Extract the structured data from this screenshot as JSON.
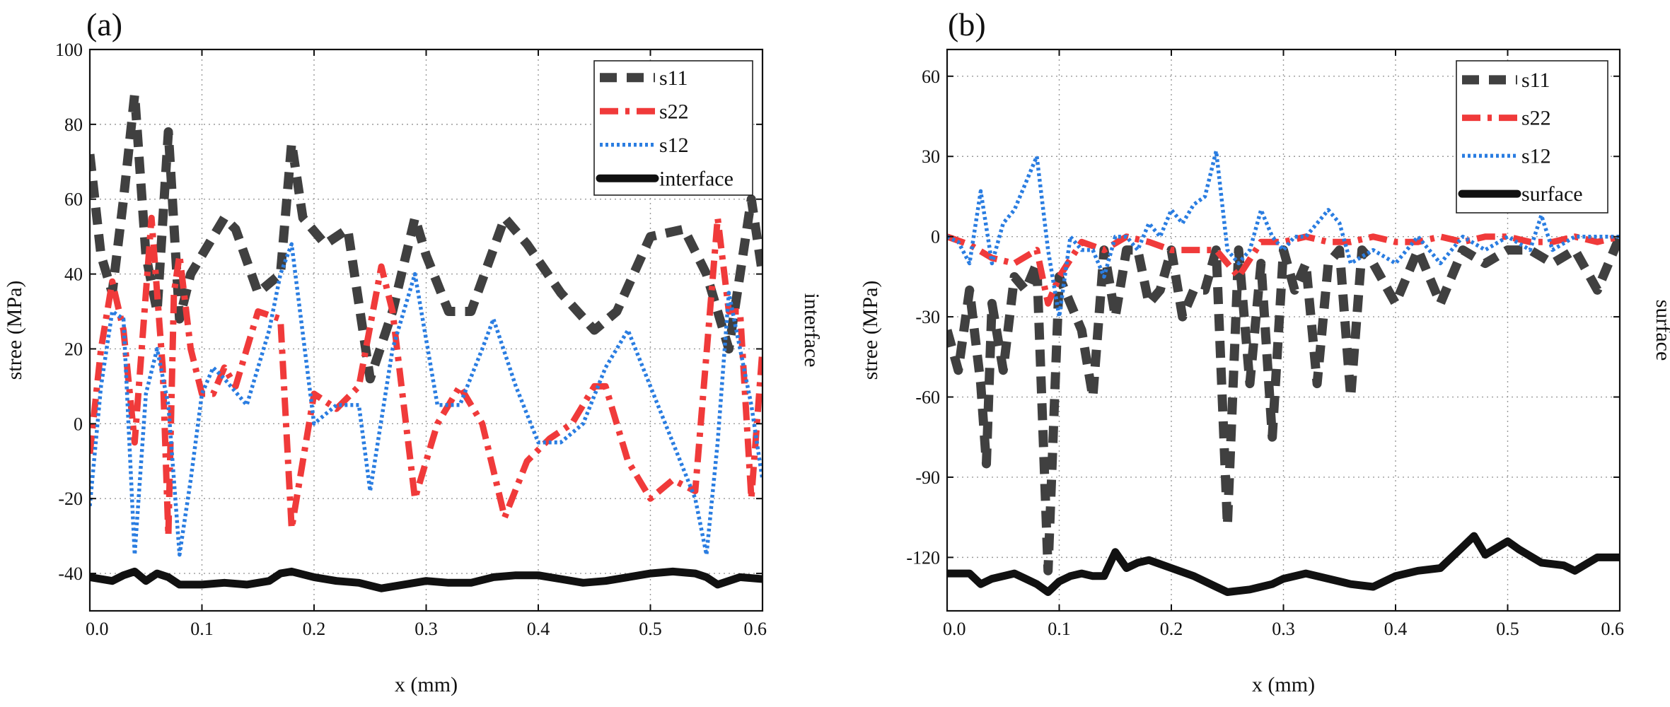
{
  "chart_data": [
    {
      "type": "line",
      "panel_label": "(a)",
      "xlabel": "x (mm)",
      "ylabel": "stree (MPa)",
      "right_label": "interface",
      "xlim": [
        0,
        0.6
      ],
      "ylim": [
        -50,
        100
      ],
      "x_ticks": [
        0.0,
        0.1,
        0.2,
        0.3,
        0.4,
        0.5,
        0.6
      ],
      "x_tick_labels": [
        "0.0",
        "0.1",
        "0.2",
        "0.3",
        "0.4",
        "0.5",
        "0.6"
      ],
      "y_ticks": [
        -40,
        -20,
        0,
        20,
        40,
        60,
        80,
        100
      ],
      "y_tick_labels": [
        "-40",
        "-20",
        "0",
        "20",
        "40",
        "60",
        "80",
        "100"
      ],
      "grid": true,
      "legend_position": "top-right",
      "series": [
        {
          "name": "s11",
          "color": "#404040",
          "style": "dash",
          "x": [
            0,
            0.01,
            0.02,
            0.03,
            0.04,
            0.05,
            0.06,
            0.07,
            0.08,
            0.09,
            0.1,
            0.12,
            0.13,
            0.15,
            0.17,
            0.18,
            0.19,
            0.21,
            0.23,
            0.25,
            0.27,
            0.29,
            0.3,
            0.32,
            0.34,
            0.37,
            0.39,
            0.42,
            0.45,
            0.47,
            0.5,
            0.53,
            0.55,
            0.57,
            0.59,
            0.6
          ],
          "y": [
            72,
            45,
            35,
            60,
            88,
            45,
            30,
            78,
            28,
            40,
            45,
            55,
            52,
            35,
            40,
            75,
            55,
            48,
            52,
            12,
            30,
            55,
            45,
            30,
            30,
            55,
            48,
            35,
            25,
            30,
            50,
            52,
            40,
            20,
            60,
            40
          ]
        },
        {
          "name": "s22",
          "color": "#f03a3a",
          "style": "dashdot",
          "x": [
            0,
            0.01,
            0.02,
            0.03,
            0.04,
            0.05,
            0.055,
            0.06,
            0.065,
            0.07,
            0.075,
            0.08,
            0.09,
            0.1,
            0.11,
            0.12,
            0.13,
            0.15,
            0.17,
            0.18,
            0.2,
            0.22,
            0.24,
            0.26,
            0.27,
            0.29,
            0.31,
            0.33,
            0.35,
            0.37,
            0.39,
            0.41,
            0.43,
            0.45,
            0.46,
            0.48,
            0.5,
            0.52,
            0.54,
            0.56,
            0.57,
            0.58,
            0.59,
            0.6
          ],
          "y": [
            -8,
            20,
            38,
            25,
            -5,
            35,
            55,
            35,
            15,
            -30,
            35,
            45,
            20,
            8,
            8,
            15,
            10,
            30,
            28,
            -28,
            8,
            4,
            10,
            42,
            30,
            -20,
            0,
            10,
            0,
            -25,
            -10,
            -4,
            0,
            10,
            10,
            -10,
            -20,
            -15,
            -18,
            55,
            30,
            30,
            -20,
            20
          ]
        },
        {
          "name": "s12",
          "color": "#2a7de1",
          "style": "dot",
          "x": [
            0,
            0.01,
            0.02,
            0.03,
            0.04,
            0.05,
            0.06,
            0.07,
            0.08,
            0.09,
            0.1,
            0.11,
            0.12,
            0.14,
            0.16,
            0.17,
            0.18,
            0.2,
            0.22,
            0.24,
            0.25,
            0.27,
            0.29,
            0.31,
            0.33,
            0.35,
            0.36,
            0.38,
            0.4,
            0.42,
            0.44,
            0.46,
            0.48,
            0.5,
            0.52,
            0.54,
            0.55,
            0.56,
            0.57,
            0.58,
            0.59,
            0.6
          ],
          "y": [
            -22,
            10,
            30,
            28,
            -35,
            8,
            20,
            5,
            -35,
            -15,
            8,
            15,
            12,
            5,
            25,
            40,
            48,
            0,
            5,
            5,
            -18,
            20,
            40,
            5,
            5,
            20,
            28,
            10,
            -5,
            -5,
            0,
            15,
            25,
            10,
            -5,
            -20,
            -35,
            -5,
            35,
            20,
            5,
            -15
          ]
        },
        {
          "name": "interface",
          "color": "#111111",
          "style": "solid",
          "x": [
            0,
            0.02,
            0.03,
            0.04,
            0.05,
            0.06,
            0.07,
            0.08,
            0.09,
            0.1,
            0.12,
            0.14,
            0.16,
            0.17,
            0.18,
            0.2,
            0.22,
            0.24,
            0.26,
            0.28,
            0.3,
            0.32,
            0.34,
            0.36,
            0.38,
            0.4,
            0.42,
            0.44,
            0.46,
            0.48,
            0.5,
            0.52,
            0.54,
            0.55,
            0.56,
            0.58,
            0.6
          ],
          "y": [
            -41,
            -42,
            -40.5,
            -39.5,
            -42,
            -40,
            -41,
            -43,
            -43,
            -43,
            -42.5,
            -43,
            -42,
            -40,
            -39.5,
            -41,
            -42,
            -42.5,
            -44,
            -43,
            -42,
            -42.5,
            -42.5,
            -41,
            -40.5,
            -40.5,
            -41.5,
            -42.5,
            -42,
            -41,
            -40,
            -39.5,
            -40,
            -41,
            -43,
            -41,
            -41.5
          ]
        }
      ]
    },
    {
      "type": "line",
      "panel_label": "(b)",
      "xlabel": "x (mm)",
      "ylabel": "stree (MPa)",
      "right_label": "surface",
      "xlim": [
        0,
        0.6
      ],
      "ylim": [
        -140,
        70
      ],
      "x_ticks": [
        0.0,
        0.1,
        0.2,
        0.3,
        0.4,
        0.5,
        0.6
      ],
      "x_tick_labels": [
        "0.0",
        "0.1",
        "0.2",
        "0.3",
        "0.4",
        "0.5",
        "0.6"
      ],
      "y_ticks": [
        -120,
        -90,
        -60,
        -30,
        0,
        30,
        60
      ],
      "y_tick_labels": [
        "-120",
        "-90",
        "-60",
        "-30",
        "0",
        "30",
        "60"
      ],
      "grid": true,
      "legend_position": "top-right",
      "series": [
        {
          "name": "s11",
          "color": "#404040",
          "style": "dash",
          "x": [
            0,
            0.01,
            0.02,
            0.03,
            0.035,
            0.04,
            0.05,
            0.06,
            0.07,
            0.08,
            0.09,
            0.1,
            0.11,
            0.12,
            0.13,
            0.14,
            0.15,
            0.16,
            0.17,
            0.18,
            0.19,
            0.2,
            0.21,
            0.22,
            0.23,
            0.24,
            0.25,
            0.26,
            0.27,
            0.28,
            0.29,
            0.3,
            0.31,
            0.32,
            0.33,
            0.34,
            0.35,
            0.36,
            0.37,
            0.38,
            0.4,
            0.42,
            0.44,
            0.46,
            0.48,
            0.5,
            0.52,
            0.54,
            0.56,
            0.58,
            0.6
          ],
          "y": [
            -35,
            -50,
            -20,
            -55,
            -85,
            -25,
            -50,
            -15,
            -20,
            -10,
            -125,
            -15,
            -25,
            -35,
            -60,
            -5,
            -30,
            -5,
            -5,
            -25,
            -20,
            -5,
            -30,
            -20,
            -20,
            -5,
            -108,
            -5,
            -55,
            -10,
            -75,
            -5,
            -20,
            -10,
            -55,
            -10,
            -5,
            -60,
            -5,
            -10,
            -25,
            -5,
            -25,
            -5,
            -10,
            -5,
            -5,
            -10,
            -5,
            -20,
            0
          ]
        },
        {
          "name": "s22",
          "color": "#f03a3a",
          "style": "dashdot",
          "x": [
            0,
            0.02,
            0.04,
            0.06,
            0.08,
            0.09,
            0.1,
            0.12,
            0.14,
            0.16,
            0.18,
            0.2,
            0.22,
            0.24,
            0.26,
            0.28,
            0.3,
            0.32,
            0.34,
            0.36,
            0.38,
            0.4,
            0.42,
            0.44,
            0.46,
            0.48,
            0.5,
            0.52,
            0.54,
            0.56,
            0.58,
            0.6
          ],
          "y": [
            0,
            -3,
            -8,
            -10,
            -5,
            -25,
            -15,
            -2,
            -5,
            0,
            -2,
            -5,
            -5,
            -5,
            -15,
            -2,
            -2,
            0,
            -2,
            -2,
            0,
            -2,
            -2,
            0,
            -2,
            0,
            0,
            -2,
            -2,
            0,
            -2,
            0
          ]
        },
        {
          "name": "s12",
          "color": "#2a7de1",
          "style": "dot",
          "x": [
            0,
            0.01,
            0.02,
            0.03,
            0.04,
            0.05,
            0.06,
            0.07,
            0.08,
            0.09,
            0.1,
            0.11,
            0.12,
            0.13,
            0.14,
            0.15,
            0.16,
            0.17,
            0.18,
            0.19,
            0.2,
            0.21,
            0.22,
            0.23,
            0.24,
            0.25,
            0.26,
            0.27,
            0.28,
            0.29,
            0.3,
            0.31,
            0.32,
            0.33,
            0.34,
            0.35,
            0.36,
            0.38,
            0.4,
            0.42,
            0.44,
            0.46,
            0.48,
            0.5,
            0.52,
            0.53,
            0.54,
            0.56,
            0.58,
            0.6
          ],
          "y": [
            0,
            -2,
            -10,
            17,
            -10,
            5,
            10,
            20,
            30,
            -5,
            -30,
            0,
            -5,
            -5,
            -15,
            0,
            0,
            -5,
            5,
            0,
            10,
            5,
            12,
            15,
            32,
            -5,
            -10,
            -5,
            10,
            0,
            -5,
            0,
            0,
            5,
            10,
            5,
            -10,
            -5,
            -10,
            0,
            -10,
            0,
            -5,
            0,
            -5,
            8,
            -5,
            0,
            0,
            0
          ]
        },
        {
          "name": "surface",
          "color": "#111111",
          "style": "solid",
          "x": [
            0,
            0.02,
            0.03,
            0.04,
            0.06,
            0.07,
            0.08,
            0.09,
            0.1,
            0.11,
            0.12,
            0.13,
            0.14,
            0.15,
            0.16,
            0.17,
            0.18,
            0.2,
            0.22,
            0.24,
            0.25,
            0.27,
            0.29,
            0.3,
            0.32,
            0.34,
            0.36,
            0.38,
            0.4,
            0.42,
            0.44,
            0.46,
            0.47,
            0.48,
            0.5,
            0.51,
            0.53,
            0.55,
            0.56,
            0.58,
            0.6
          ],
          "y": [
            -126,
            -126,
            -130,
            -128,
            -126,
            -128,
            -130,
            -133,
            -129,
            -127,
            -126,
            -127,
            -127,
            -118,
            -124,
            -122,
            -121,
            -124,
            -127,
            -131,
            -133,
            -132,
            -130,
            -128,
            -126,
            -128,
            -130,
            -131,
            -127,
            -125,
            -124,
            -116,
            -112,
            -119,
            -114,
            -117,
            -122,
            -123,
            -125,
            -120,
            -120
          ]
        }
      ]
    }
  ]
}
